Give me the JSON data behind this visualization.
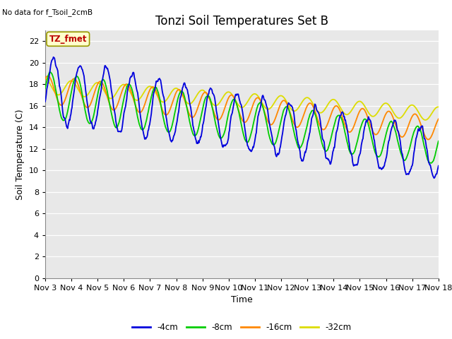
{
  "title": "Tonzi Soil Temperatures Set B",
  "no_data_label": "No data for f_Tsoil_2cmB",
  "tz_fmet_label": "TZ_fmet",
  "xlabel": "Time",
  "ylabel": "Soil Temperature (C)",
  "ylim": [
    0,
    23
  ],
  "yticks": [
    0,
    2,
    4,
    6,
    8,
    10,
    12,
    14,
    16,
    18,
    20,
    22
  ],
  "colors": {
    "4cm": "#0000dd",
    "8cm": "#00cc00",
    "16cm": "#ff8800",
    "32cm": "#dddd00"
  },
  "legend_labels": [
    "-4cm",
    "-8cm",
    "-16cm",
    "-32cm"
  ],
  "x_tick_labels": [
    "Nov 3",
    "Nov 4",
    "Nov 5",
    "Nov 6",
    "Nov 7",
    "Nov 8",
    "Nov 9",
    "Nov 10",
    "Nov 11",
    "Nov 12",
    "Nov 13",
    "Nov 14",
    "Nov 15",
    "Nov 16",
    "Nov 17",
    "Nov 18"
  ],
  "plot_bg_color": "#e8e8e8",
  "title_fontsize": 12,
  "axis_label_fontsize": 9,
  "tick_fontsize": 8
}
